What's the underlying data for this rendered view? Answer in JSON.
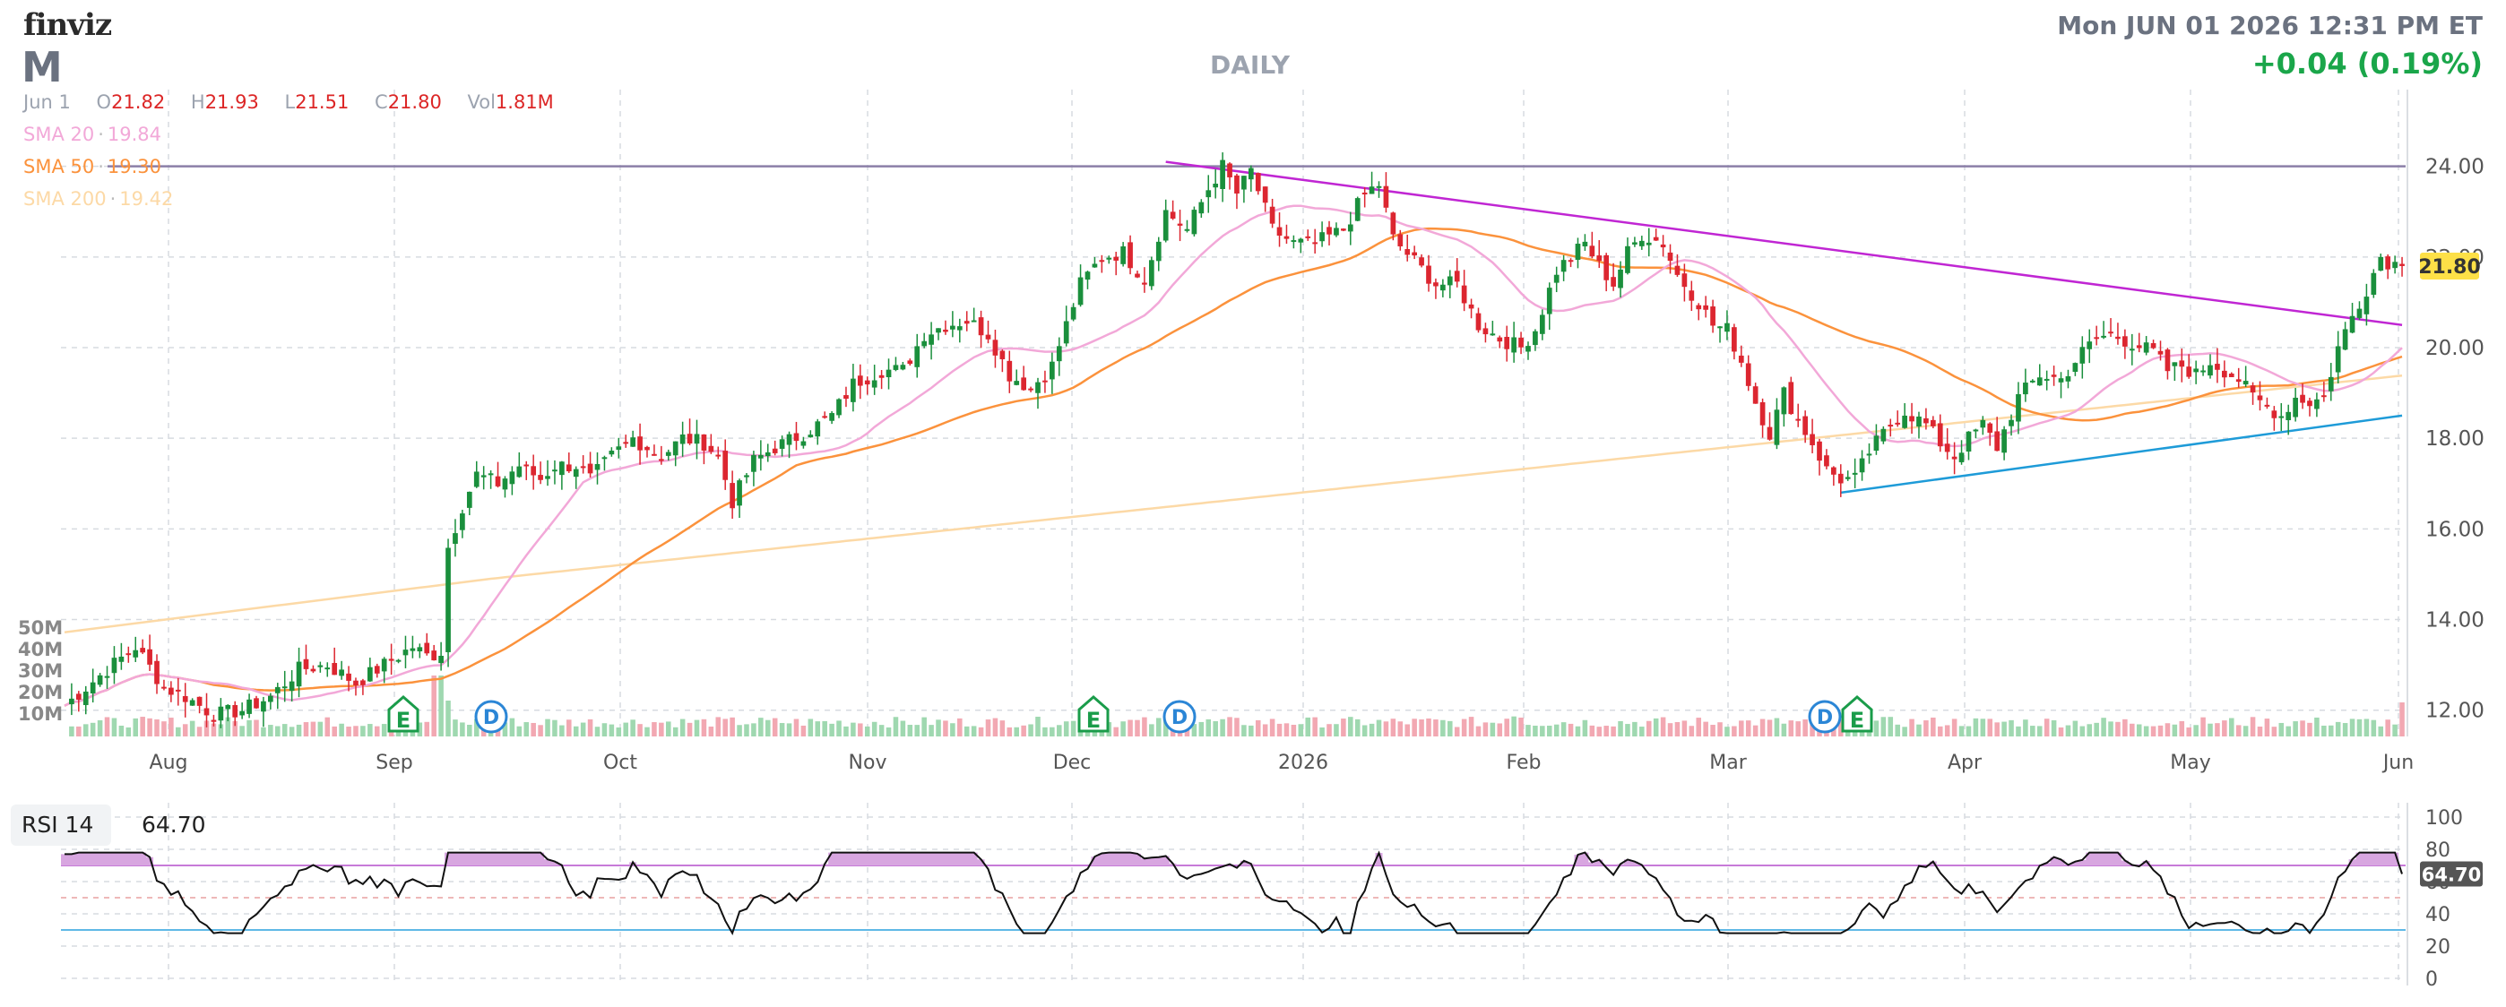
{
  "header": {
    "logo": "finviz",
    "ticker": "M",
    "period": "DAILY",
    "datetime": "Mon JUN 01 2026 12:31 PM ET",
    "change": "+0.04 (0.19%)",
    "ohlc": {
      "date": "Jun 1",
      "open": "21.82",
      "high": "21.93",
      "low": "21.51",
      "close": "21.80",
      "volume": "1.81M"
    }
  },
  "indicators": [
    {
      "label": "SMA 20",
      "value": "19.84",
      "color": "#f2a8d8"
    },
    {
      "label": "SMA 50",
      "value": "19.30",
      "color": "#fb923c"
    },
    {
      "label": "SMA 200",
      "value": "19.42",
      "color": "#fcd9a6"
    }
  ],
  "rsi": {
    "label": "RSI 14",
    "value": "64.70"
  },
  "colors": {
    "up": "#1a8f3c",
    "down": "#dc2630",
    "vol_up": "#9fd8b0",
    "vol_down": "#f2a8b2",
    "grid": "#d7dbe0",
    "resist": "#c026d3",
    "support": "#1e9bd8",
    "price_tag": "#fde047"
  },
  "chart_data": {
    "type": "candlestick",
    "x_labels": [
      "Aug",
      "Sep",
      "Oct",
      "Nov",
      "Dec",
      "2026",
      "Feb",
      "Mar",
      "Apr",
      "May",
      "Jun"
    ],
    "y_ticks": [
      "24.00",
      "22.00",
      "20.00",
      "18.00",
      "16.00",
      "14.00",
      "12.00"
    ],
    "y_range": [
      11.5,
      25.1
    ],
    "volume_ticks": [
      "50M",
      "40M",
      "30M",
      "20M",
      "10M"
    ],
    "last_price": "21.80",
    "rsi_ticks": [
      "100",
      "80",
      "60",
      "40",
      "20",
      "0"
    ],
    "rsi_current": "64.70",
    "events": [
      {
        "type": "E",
        "month": "Sep"
      },
      {
        "type": "D",
        "month": "Sep"
      },
      {
        "type": "E",
        "month": "Dec"
      },
      {
        "type": "D",
        "month": "Dec"
      },
      {
        "type": "D",
        "month": "Mar"
      },
      {
        "type": "E",
        "month": "Mar"
      }
    ],
    "anchors": [
      [
        0,
        12.1
      ],
      [
        6,
        12.9
      ],
      [
        10,
        13.4
      ],
      [
        14,
        12.5
      ],
      [
        17,
        12.3
      ],
      [
        21,
        11.9
      ],
      [
        25,
        12.0
      ],
      [
        29,
        12.3
      ],
      [
        33,
        12.9
      ],
      [
        37,
        13.0
      ],
      [
        41,
        12.6
      ],
      [
        45,
        13.0
      ],
      [
        49,
        13.4
      ],
      [
        52,
        13.1
      ],
      [
        53,
        13.2
      ],
      [
        54,
        15.6
      ],
      [
        56,
        16.5
      ],
      [
        58,
        17.2
      ],
      [
        61,
        17.0
      ],
      [
        64,
        17.4
      ],
      [
        67,
        17.1
      ],
      [
        69,
        17.4
      ],
      [
        72,
        17.4
      ],
      [
        74,
        17.1
      ],
      [
        77,
        17.6
      ],
      [
        80,
        18.0
      ],
      [
        84,
        17.6
      ],
      [
        87,
        18.0
      ],
      [
        90,
        17.9
      ],
      [
        92,
        17.6
      ],
      [
        94,
        16.6
      ],
      [
        97,
        17.5
      ],
      [
        100,
        17.8
      ],
      [
        104,
        18.1
      ],
      [
        108,
        18.5
      ],
      [
        111,
        19.2
      ],
      [
        115,
        19.5
      ],
      [
        118,
        19.5
      ],
      [
        121,
        20.3
      ],
      [
        124,
        20.5
      ],
      [
        127,
        20.6
      ],
      [
        130,
        20.3
      ],
      [
        133,
        19.4
      ],
      [
        136,
        19.1
      ],
      [
        139,
        19.6
      ],
      [
        143,
        21.4
      ],
      [
        146,
        22.0
      ],
      [
        149,
        22.1
      ],
      [
        152,
        21.5
      ],
      [
        155,
        23.0
      ],
      [
        158,
        22.6
      ],
      [
        161,
        23.5
      ],
      [
        163,
        24.0
      ],
      [
        165,
        23.4
      ],
      [
        167,
        23.9
      ],
      [
        170,
        22.6
      ],
      [
        173,
        22.3
      ],
      [
        176,
        22.3
      ],
      [
        180,
        22.6
      ],
      [
        183,
        23.4
      ],
      [
        185,
        23.6
      ],
      [
        187,
        22.4
      ],
      [
        190,
        21.9
      ],
      [
        193,
        21.4
      ],
      [
        196,
        21.4
      ],
      [
        199,
        20.5
      ],
      [
        202,
        20.2
      ],
      [
        205,
        20.0
      ],
      [
        207,
        20.4
      ],
      [
        210,
        21.7
      ],
      [
        212,
        22.0
      ],
      [
        214,
        22.3
      ],
      [
        216,
        21.8
      ],
      [
        218,
        21.4
      ],
      [
        220,
        22.1
      ],
      [
        222,
        22.5
      ],
      [
        225,
        22.3
      ],
      [
        227,
        21.6
      ],
      [
        230,
        21.0
      ],
      [
        232,
        20.5
      ],
      [
        234,
        20.4
      ],
      [
        236,
        19.7
      ],
      [
        238,
        18.8
      ],
      [
        240,
        18.1
      ],
      [
        242,
        19.0
      ],
      [
        244,
        18.4
      ],
      [
        246,
        17.9
      ],
      [
        248,
        17.3
      ],
      [
        250,
        17.1
      ],
      [
        252,
        17.1
      ],
      [
        254,
        17.7
      ],
      [
        257,
        18.3
      ],
      [
        259,
        18.6
      ],
      [
        262,
        18.3
      ],
      [
        264,
        17.9
      ],
      [
        266,
        17.6
      ],
      [
        268,
        18.0
      ],
      [
        270,
        18.3
      ],
      [
        272,
        17.8
      ],
      [
        275,
        18.9
      ],
      [
        278,
        19.4
      ],
      [
        281,
        19.3
      ],
      [
        284,
        19.9
      ],
      [
        286,
        20.2
      ],
      [
        288,
        20.3
      ],
      [
        291,
        20.1
      ],
      [
        294,
        19.9
      ],
      [
        296,
        19.5
      ],
      [
        298,
        19.6
      ],
      [
        300,
        19.4
      ],
      [
        302,
        19.7
      ],
      [
        304,
        19.5
      ],
      [
        306,
        19.3
      ],
      [
        308,
        18.9
      ],
      [
        310,
        18.7
      ],
      [
        312,
        18.5
      ],
      [
        314,
        18.9
      ],
      [
        316,
        18.8
      ],
      [
        318,
        18.9
      ],
      [
        320,
        20.0
      ],
      [
        322,
        20.7
      ],
      [
        324,
        21.3
      ],
      [
        326,
        22.0
      ],
      [
        327,
        21.9
      ],
      [
        329,
        21.8
      ]
    ],
    "n_days": 330,
    "trendlines": [
      {
        "name": "resistance",
        "from": [
          155,
          24.1
        ],
        "to": [
          329,
          20.5
        ]
      },
      {
        "name": "support",
        "from": [
          250,
          16.8
        ],
        "to": [
          329,
          18.5
        ]
      }
    ],
    "levels": [
      {
        "value": 24.0
      }
    ]
  }
}
